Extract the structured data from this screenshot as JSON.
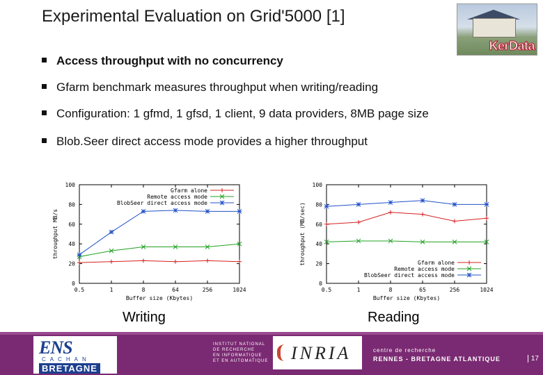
{
  "slide": {
    "title": "Experimental Evaluation on Grid'5000 [1]",
    "logo_text": "KerData",
    "bullets": [
      {
        "text": "Access throughput with no concurrency"
      },
      {
        "text": "Gfarm benchmark measures throughput when writing/reading"
      },
      {
        "text": "Configuration: 1 gfmd, 1 gfsd, 1 client, 9  data providers, 8MB page size"
      },
      {
        "text": "Blob.Seer direct access mode provides a higher throughput"
      }
    ]
  },
  "footer": {
    "ens_main": "ENS",
    "ens_sub": "CACHAN",
    "ens_bottom": "BRETAGNE",
    "inst_line1": "INSTITUT NATIONAL",
    "inst_line2": "DE RECHERCHE",
    "inst_line3": "EN INFORMATIQUE",
    "inst_line4": "ET EN AUTOMATIQUE",
    "inria": "INRIA",
    "centre_line1": "centre de recherche",
    "centre_line2": "RENNES - BRETAGNE ATLANTIQUE",
    "page_number": "17"
  },
  "colors": {
    "gfarm": "#d42020",
    "remote": "#20a020",
    "direct": "#2050c8",
    "footer": "#7a2a72"
  },
  "chart_data": [
    {
      "type": "line",
      "caption": "Writing",
      "xlabel": "Buffer size (Kbytes)",
      "ylabel": "throughput MB/s",
      "x_ticks": [
        "0.5",
        "1",
        "8",
        "64",
        "256",
        "1024"
      ],
      "y_ticks": [
        "0",
        "20",
        "40",
        "60",
        "80",
        "100"
      ],
      "ylim": [
        0,
        100
      ],
      "legend_position": "top-right",
      "series": [
        {
          "name": "Gfarm alone",
          "color_key": "gfarm",
          "marker": "+",
          "values": [
            21,
            22,
            23,
            22,
            23,
            22
          ]
        },
        {
          "name": "Remote access mode",
          "color_key": "remote",
          "marker": "x",
          "values": [
            27,
            33,
            37,
            37,
            37,
            40
          ]
        },
        {
          "name": "BlobSeer direct access mode",
          "color_key": "direct",
          "marker": "*",
          "values": [
            29,
            52,
            73,
            74,
            73,
            73
          ]
        }
      ]
    },
    {
      "type": "line",
      "caption": "Reading",
      "xlabel": "Buffer size (Kbytes)",
      "ylabel": "throughput (MB/sec)",
      "x_ticks": [
        "0.5",
        "1",
        "8",
        "65",
        "256",
        "1024"
      ],
      "y_ticks": [
        "0",
        "20",
        "40",
        "60",
        "80",
        "100"
      ],
      "ylim": [
        0,
        100
      ],
      "legend_position": "bottom-right",
      "series": [
        {
          "name": "Gfarm alone",
          "color_key": "gfarm",
          "marker": "+",
          "values": [
            60,
            62,
            72,
            70,
            63,
            66
          ]
        },
        {
          "name": "Remote access mode",
          "color_key": "remote",
          "marker": "x",
          "values": [
            42,
            43,
            43,
            42,
            42,
            42
          ]
        },
        {
          "name": "BlobSeer direct access mode",
          "color_key": "direct",
          "marker": "*",
          "values": [
            78,
            80,
            82,
            84,
            80,
            80
          ]
        }
      ]
    }
  ]
}
